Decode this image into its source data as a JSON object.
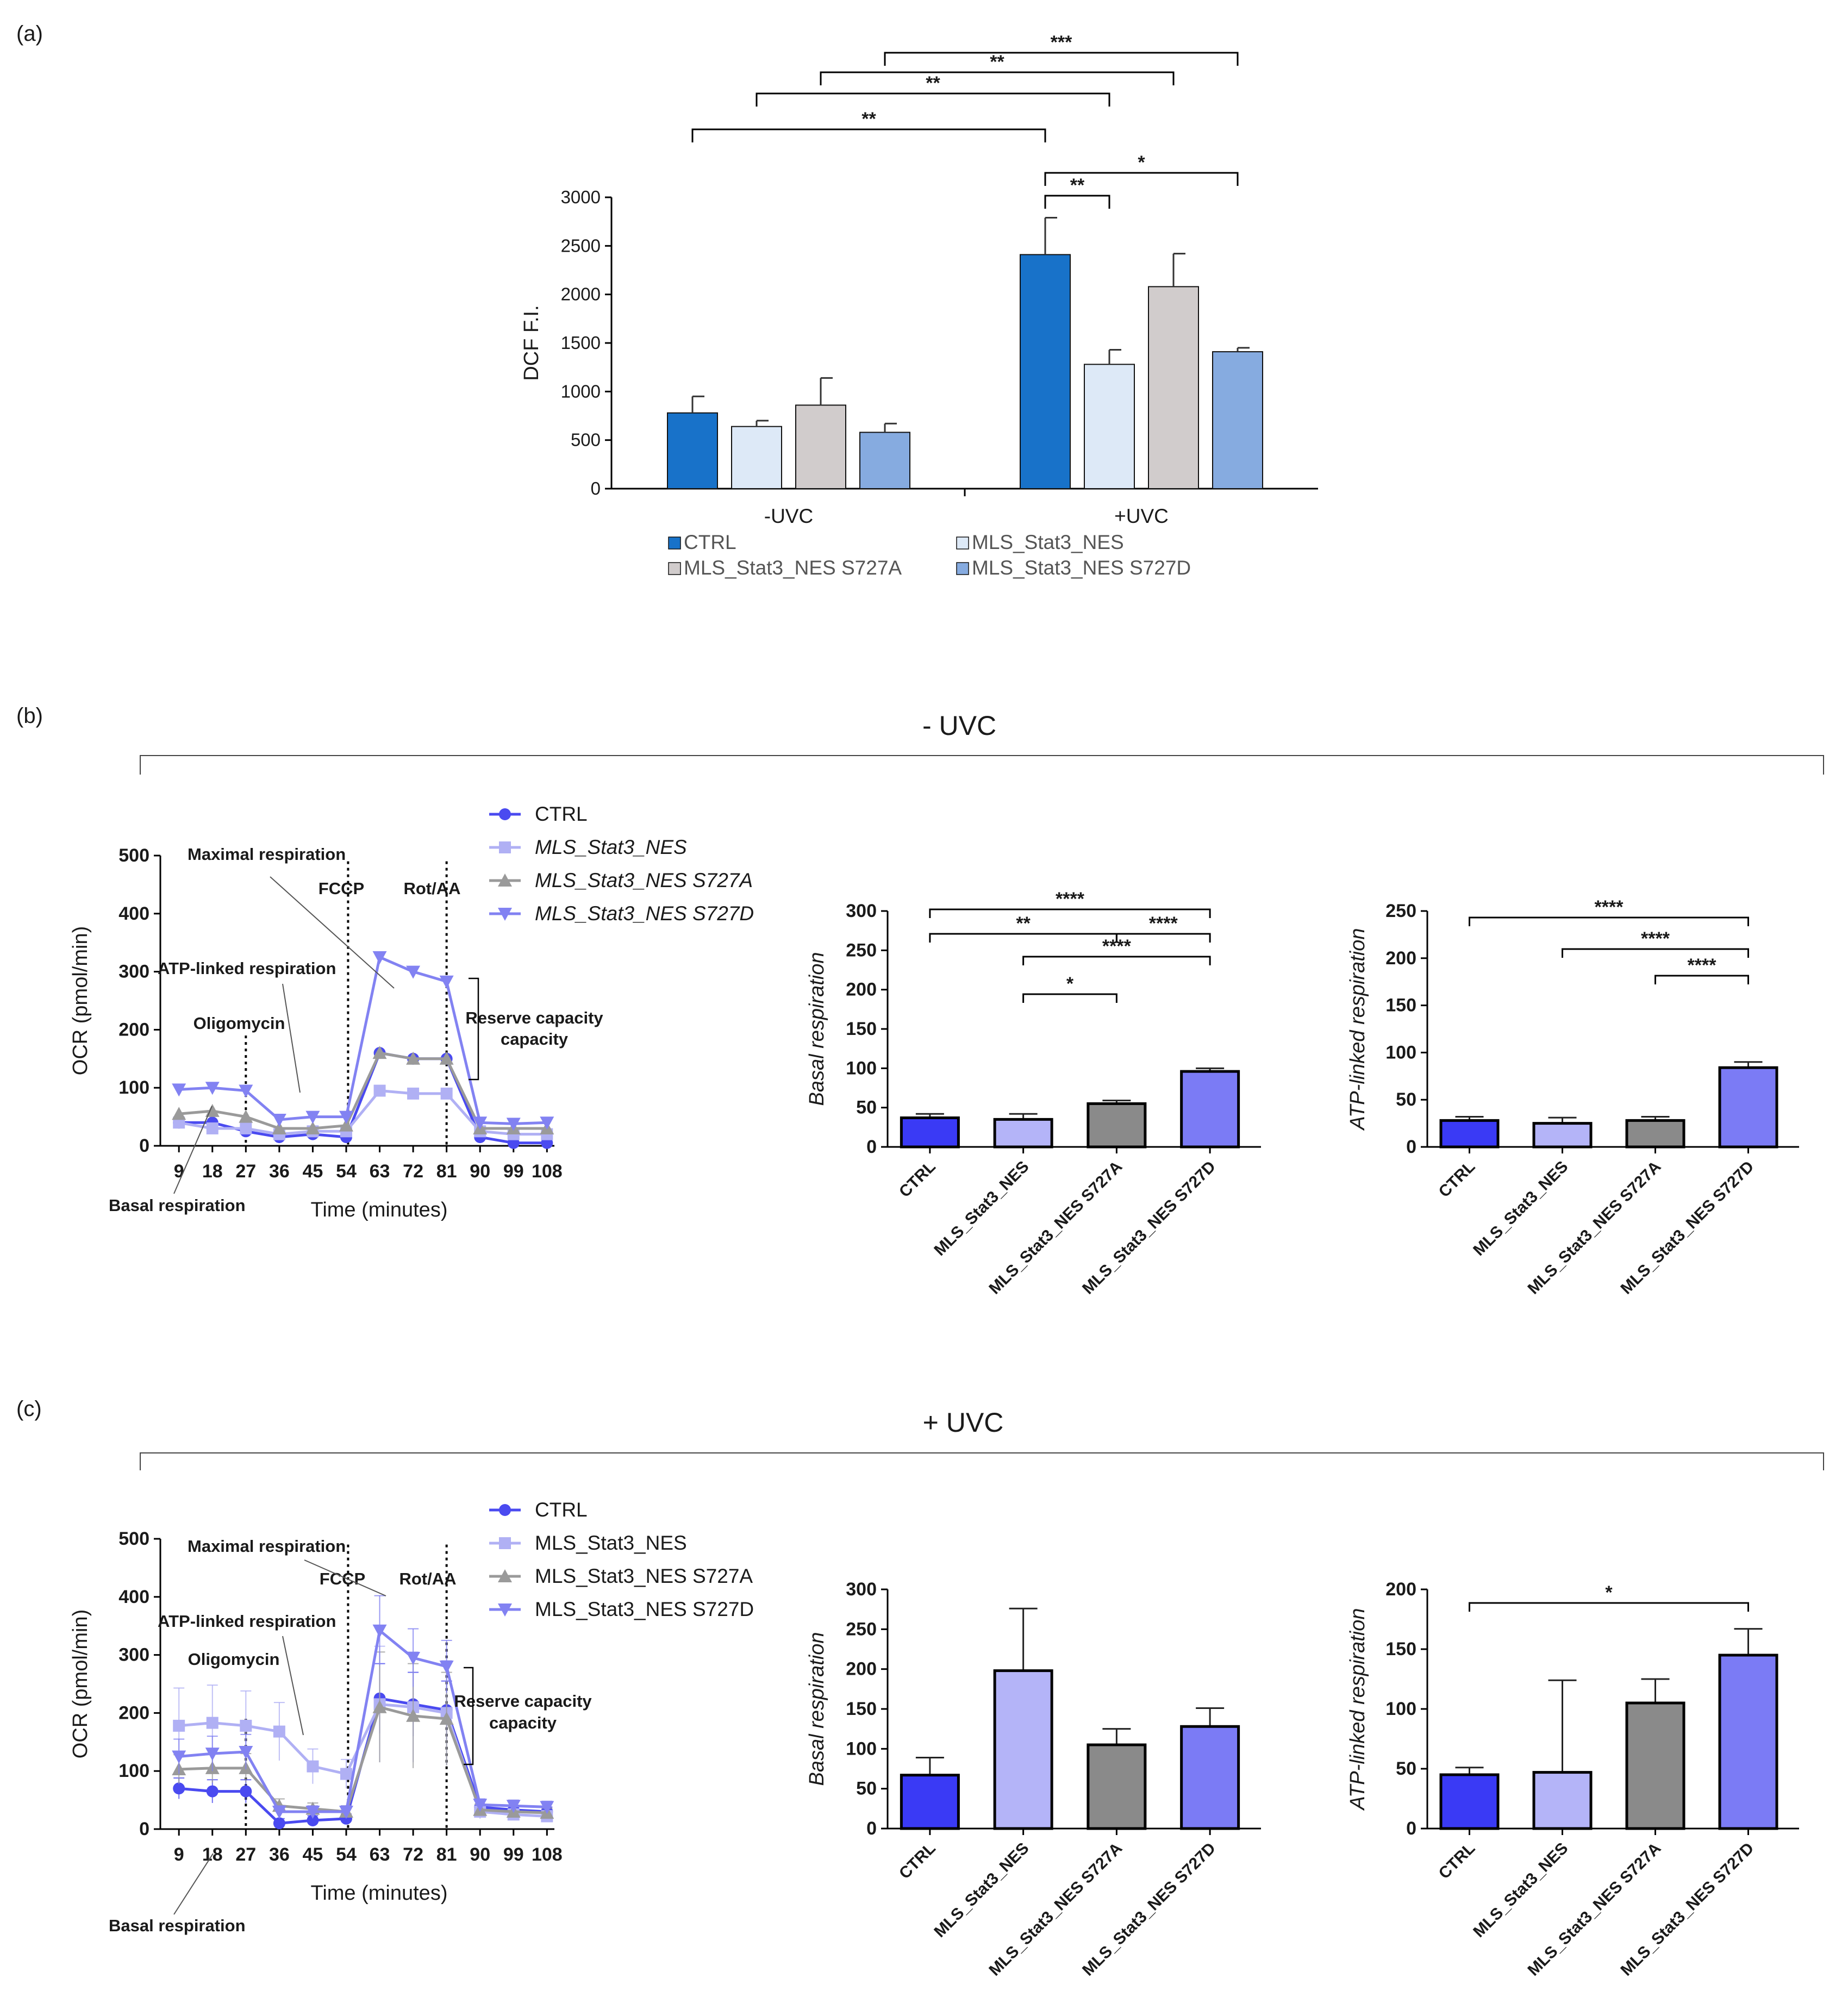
{
  "colors": {
    "a_series": [
      "#1872C9",
      "#DDE9F7",
      "#D1CCCC",
      "#86ABE0"
    ],
    "bc_series": [
      "#3A3AF5",
      "#B4B4F8",
      "#8A8A8A",
      "#7B7BF5"
    ],
    "ocr_series": [
      "#4A4AF0",
      "#B0B0F4",
      "#9A9A9A",
      "#8282F2"
    ]
  },
  "panel_labels": {
    "a": "(a)",
    "b": "(b)",
    "c": "(c)"
  },
  "panel_b": {
    "condition": "- UVC"
  },
  "panel_c": {
    "condition": "+ UVC"
  },
  "chart_data": [
    {
      "id": "a",
      "type": "bar",
      "title": "",
      "xlabel": "",
      "ylabel": "DCF F.I.",
      "ylim": [
        0,
        3000
      ],
      "yticks": [
        "0",
        "500",
        "1000",
        "1500",
        "2000",
        "2500",
        "3000"
      ],
      "groups": [
        "-UVC",
        "+UVC"
      ],
      "series": [
        {
          "name": "CTRL",
          "values": [
            780,
            2410
          ],
          "errors": [
            170,
            380
          ]
        },
        {
          "name": "MLS_Stat3_NES",
          "values": [
            640,
            1280
          ],
          "errors": [
            60,
            150
          ]
        },
        {
          "name": "MLS_Stat3_NES S727A",
          "values": [
            860,
            2080
          ],
          "errors": [
            280,
            340
          ]
        },
        {
          "name": "MLS_Stat3_NES S727D",
          "values": [
            580,
            1410
          ],
          "errors": [
            90,
            40
          ]
        }
      ],
      "legend": [
        "CTRL",
        "MLS_Stat3_NES",
        "MLS_Stat3_NES S727A",
        "MLS_Stat3_NES S727D"
      ],
      "significance": [
        {
          "label": "***",
          "from": [
            0,
            3
          ],
          "to": [
            1,
            3
          ]
        },
        {
          "label": "**",
          "from": [
            0,
            2
          ],
          "to": [
            1,
            2
          ]
        },
        {
          "label": "**",
          "from": [
            0,
            1
          ],
          "to": [
            1,
            1
          ]
        },
        {
          "label": "**",
          "from": [
            0,
            0
          ],
          "to": [
            1,
            0
          ]
        },
        {
          "label": "*",
          "from": [
            1,
            0
          ],
          "to": [
            1,
            3
          ]
        },
        {
          "label": "**",
          "from": [
            1,
            0
          ],
          "to": [
            1,
            1
          ]
        }
      ]
    },
    {
      "id": "b_ocr",
      "type": "line",
      "xlabel": "Time (minutes)",
      "ylabel": "OCR (pmol/min)",
      "ylim": [
        0,
        500
      ],
      "yticks": [
        "0",
        "100",
        "200",
        "300",
        "400",
        "500"
      ],
      "x": [
        9,
        18,
        27,
        36,
        45,
        54,
        63,
        72,
        81,
        90,
        99,
        108
      ],
      "x_ticklabels": [
        "9",
        "18",
        "27",
        "36",
        "45",
        "54",
        "63",
        "72",
        "81",
        "90",
        "99",
        "108"
      ],
      "series": [
        {
          "name": "CTRL",
          "values": [
            40,
            40,
            25,
            15,
            20,
            15,
            160,
            150,
            150,
            15,
            5,
            5
          ]
        },
        {
          "name": "MLS_Stat3_NES",
          "values": [
            40,
            30,
            30,
            20,
            25,
            25,
            95,
            90,
            90,
            25,
            20,
            20
          ]
        },
        {
          "name": "MLS_Stat3_NES S727A",
          "values": [
            55,
            60,
            50,
            30,
            30,
            35,
            160,
            150,
            150,
            30,
            30,
            30
          ]
        },
        {
          "name": "MLS_Stat3_NES S727D",
          "values": [
            97,
            100,
            95,
            45,
            50,
            50,
            325,
            300,
            283,
            40,
            38,
            40
          ]
        }
      ],
      "legend_italic": true,
      "annotations": [
        "Maximal respiration",
        "FCCP",
        "Rot/AA",
        "ATP-linked respiration",
        "Oligomycin",
        "Reserve capacity",
        "Basal respiration"
      ]
    },
    {
      "id": "b_basal",
      "type": "bar",
      "ylabel": "Basal respiration",
      "ylim": [
        0,
        300
      ],
      "yticks": [
        "0",
        "50",
        "100",
        "150",
        "200",
        "250",
        "300"
      ],
      "categories": [
        "CTRL",
        "MLS_Stat3_NES",
        "MLS_Stat3_NES S727A",
        "MLS_Stat3_NES S727D"
      ],
      "values": [
        37,
        35,
        55,
        96
      ],
      "errors": [
        5,
        7,
        4,
        4
      ],
      "significance": [
        {
          "label": "****",
          "from": 0,
          "to": 3
        },
        {
          "label": "**",
          "from": 0,
          "to": 2
        },
        {
          "label": "****",
          "from": 2,
          "to": 3
        },
        {
          "label": "****",
          "from": 1,
          "to": 3
        },
        {
          "label": "*",
          "from": 1,
          "to": 2
        }
      ]
    },
    {
      "id": "b_atp",
      "type": "bar",
      "ylabel": "ATP-linked respiration",
      "ylim": [
        0,
        250
      ],
      "yticks": [
        "0",
        "50",
        "100",
        "150",
        "200",
        "250"
      ],
      "categories": [
        "CTRL",
        "MLS_Stat3_NES",
        "MLS_Stat3_NES S727A",
        "MLS_Stat3_NES S727D"
      ],
      "values": [
        28,
        25,
        28,
        84
      ],
      "errors": [
        4,
        6,
        4,
        6
      ],
      "significance": [
        {
          "label": "****",
          "from": 0,
          "to": 3
        },
        {
          "label": "****",
          "from": 1,
          "to": 3
        },
        {
          "label": "****",
          "from": 2,
          "to": 3
        }
      ]
    },
    {
      "id": "c_ocr",
      "type": "line",
      "xlabel": "Time (minutes)",
      "ylabel": "OCR (pmol/min)",
      "ylim": [
        0,
        500
      ],
      "yticks": [
        "0",
        "100",
        "200",
        "300",
        "400",
        "500"
      ],
      "x": [
        9,
        18,
        27,
        36,
        45,
        54,
        63,
        72,
        81,
        90,
        99,
        108
      ],
      "x_ticklabels": [
        "9",
        "18",
        "27",
        "36",
        "45",
        "54",
        "63",
        "72",
        "81",
        "90",
        "99",
        "108"
      ],
      "series": [
        {
          "name": "CTRL",
          "values": [
            70,
            65,
            65,
            10,
            15,
            18,
            225,
            215,
            205,
            38,
            33,
            30
          ]
        },
        {
          "name": "MLS_Stat3_NES",
          "values": [
            178,
            183,
            178,
            168,
            108,
            95,
            215,
            210,
            200,
            30,
            25,
            22
          ]
        },
        {
          "name": "MLS_Stat3_NES S727A",
          "values": [
            103,
            105,
            105,
            40,
            35,
            30,
            210,
            195,
            190,
            33,
            30,
            28
          ]
        },
        {
          "name": "MLS_Stat3_NES S727D",
          "values": [
            125,
            130,
            133,
            30,
            30,
            30,
            342,
            295,
            280,
            42,
            40,
            38
          ]
        }
      ],
      "errors": [
        [
          18,
          20,
          20,
          8,
          8,
          8,
          60,
          55,
          50,
          10,
          8,
          8
        ],
        [
          65,
          65,
          60,
          50,
          30,
          25,
          100,
          95,
          90,
          12,
          10,
          10
        ],
        [
          25,
          25,
          25,
          12,
          10,
          10,
          95,
          90,
          80,
          10,
          10,
          8
        ],
        [
          30,
          30,
          30,
          10,
          10,
          10,
          60,
          50,
          45,
          10,
          10,
          10
        ]
      ],
      "legend_italic": false,
      "annotations": [
        "Maximal respiration",
        "FCCP",
        "Rot/AA",
        "ATP-linked respiration",
        "Oligomycin",
        "Reserve capacity",
        "Basal respiration"
      ]
    },
    {
      "id": "c_basal",
      "type": "bar",
      "ylabel": "Basal respiration",
      "ylim": [
        0,
        300
      ],
      "yticks": [
        "0",
        "50",
        "100",
        "150",
        "200",
        "250",
        "300"
      ],
      "categories": [
        "CTRL",
        "MLS_Stat3_NES",
        "MLS_Stat3_NES S727A",
        "MLS_Stat3_NES S727D"
      ],
      "values": [
        67,
        198,
        105,
        128
      ],
      "errors": [
        22,
        78,
        20,
        23
      ],
      "significance": []
    },
    {
      "id": "c_atp",
      "type": "bar",
      "ylabel": "ATP-linked respiration",
      "ylim": [
        0,
        200
      ],
      "yticks": [
        "0",
        "50",
        "100",
        "150",
        "200"
      ],
      "categories": [
        "CTRL",
        "MLS_Stat3_NES",
        "MLS_Stat3_NES S727A",
        "MLS_Stat3_NES S727D"
      ],
      "values": [
        45,
        47,
        105,
        145
      ],
      "errors": [
        6,
        77,
        20,
        22
      ],
      "significance": [
        {
          "label": "*",
          "from": 0,
          "to": 3
        }
      ]
    }
  ]
}
